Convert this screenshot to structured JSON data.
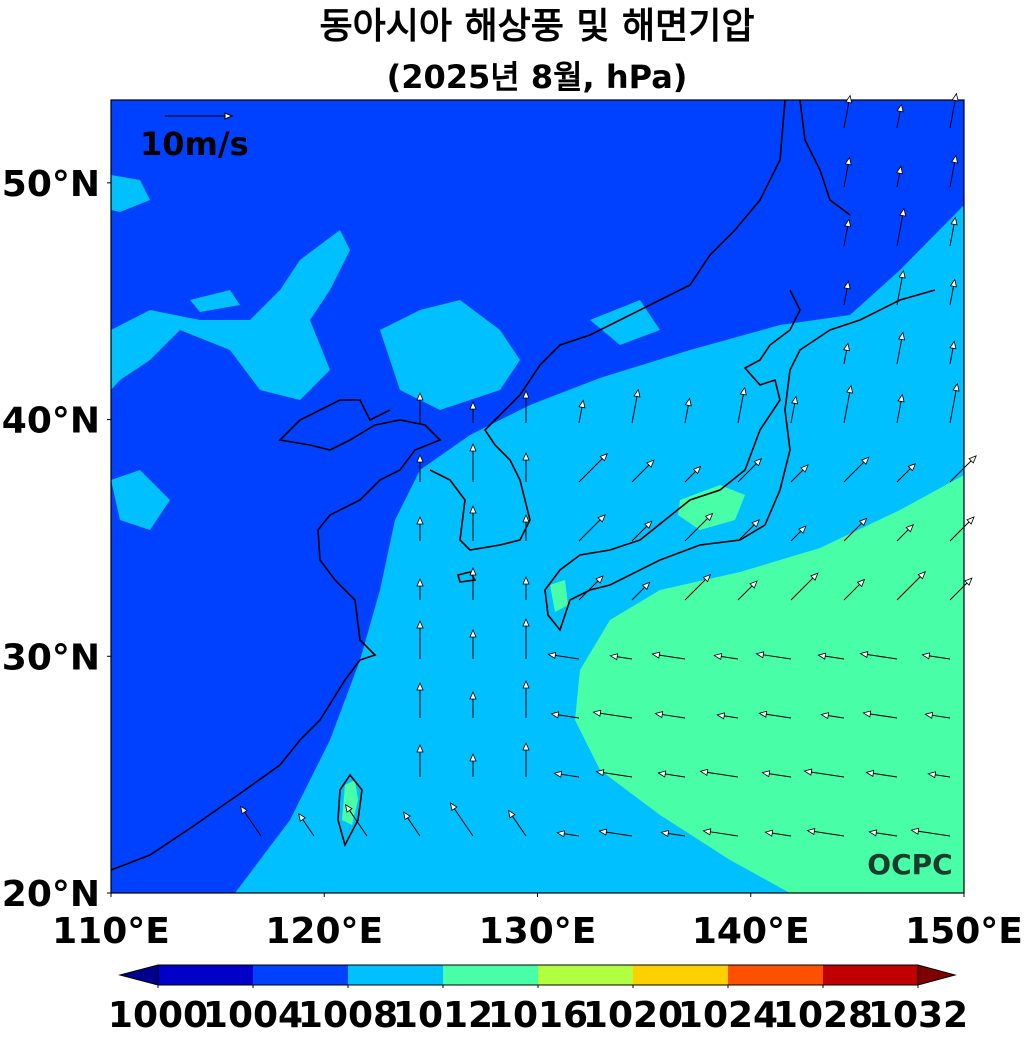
{
  "title": "동아시아 해상풍 및 해면기압",
  "subtitle": "(2025년 8월, hPa)",
  "map": {
    "lon_range": [
      110,
      150
    ],
    "lat_range": [
      20,
      53.5
    ],
    "x_ticks": [
      {
        "value": 110,
        "label": "110°E"
      },
      {
        "value": 120,
        "label": "120°E"
      },
      {
        "value": 130,
        "label": "130°E"
      },
      {
        "value": 140,
        "label": "140°E"
      },
      {
        "value": 150,
        "label": "150°E"
      }
    ],
    "y_ticks": [
      {
        "value": 20,
        "label": "20°N"
      },
      {
        "value": 30,
        "label": "30°N"
      },
      {
        "value": 40,
        "label": "40°N"
      },
      {
        "value": 50,
        "label": "50°N"
      }
    ]
  },
  "reference_vector": {
    "label": "10m/s"
  },
  "logo": "OCPC",
  "colorbar": {
    "levels": [
      1000,
      1004,
      1008,
      1012,
      1016,
      1020,
      1024,
      1028,
      1032
    ],
    "colors": [
      "#0000c8",
      "#0040ff",
      "#00c0ff",
      "#48ffa8",
      "#b0ff40",
      "#ffd000",
      "#ff5000",
      "#c00000"
    ],
    "under_color": "#00008c",
    "over_color": "#800000"
  }
}
